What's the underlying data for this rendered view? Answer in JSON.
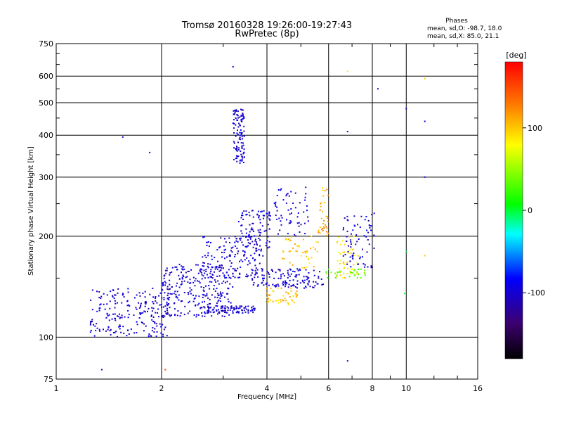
{
  "header": {
    "title_line1": "Tromsø 20160328 19:26:00-19:27:43",
    "title_line2": "RwPretec (8p)"
  },
  "stats": {
    "heading": "Phases",
    "line_o": "mean, sd,O: -98.7, 18.0",
    "line_x": "mean, sd,X:  85.0, 21.1"
  },
  "colorbar": {
    "unit": "[deg]",
    "ticks": [
      "100",
      "0",
      "-100"
    ],
    "tick_values": [
      100,
      0,
      -100
    ],
    "range": [
      -180,
      180
    ],
    "colors": [
      "#000000",
      "#3c0070",
      "#0000ff",
      "#00ffff",
      "#00ff00",
      "#ffff00",
      "#ff8000",
      "#ff0000"
    ]
  },
  "chart_data": {
    "type": "scatter",
    "title": "Tromsø 20160328 19:26:00-19:27:43",
    "subtitle": "RwPretec (8p)",
    "xlabel": "Frequency [MHz]",
    "ylabel": "Stationary phase Virtual Height [km]",
    "x_scale": "log",
    "y_scale": "log",
    "xlim": [
      1,
      16
    ],
    "ylim": [
      75,
      750
    ],
    "x_ticks": [
      1,
      2,
      4,
      6,
      8,
      10,
      16
    ],
    "x_tick_labels": [
      "1",
      "2",
      "4",
      "6",
      "8",
      "10",
      "16"
    ],
    "y_ticks": [
      75,
      100,
      200,
      300,
      400,
      500,
      600,
      750
    ],
    "y_tick_labels": [
      "75",
      "100",
      "200",
      "300",
      "400",
      "500",
      "600",
      "750"
    ],
    "grid": true,
    "color_by": "phase [deg]",
    "clusters": [
      {
        "x_range": [
          1.25,
          2.1
        ],
        "h_range": [
          100,
          140
        ],
        "phase": -100,
        "n": 220
      },
      {
        "x_range": [
          2.0,
          3.2
        ],
        "h_range": [
          115,
          165
        ],
        "phase": -100,
        "n": 260
      },
      {
        "x_range": [
          2.6,
          3.7
        ],
        "h_range": [
          118,
          124
        ],
        "phase": -100,
        "n": 90
      },
      {
        "x_range": [
          2.6,
          3.9
        ],
        "h_range": [
          150,
          200
        ],
        "phase": -100,
        "n": 160
      },
      {
        "x_range": [
          3.2,
          3.45
        ],
        "h_range": [
          330,
          480
        ],
        "phase": -100,
        "n": 110
      },
      {
        "x_range": [
          3.3,
          4.1
        ],
        "h_range": [
          180,
          240
        ],
        "phase": -100,
        "n": 90
      },
      {
        "x_range": [
          3.6,
          5.8
        ],
        "h_range": [
          140,
          160
        ],
        "phase": -100,
        "n": 130
      },
      {
        "x_range": [
          4.2,
          5.3
        ],
        "h_range": [
          200,
          280
        ],
        "phase": -100,
        "n": 60
      },
      {
        "x_range": [
          3.9,
          4.9
        ],
        "h_range": [
          125,
          140
        ],
        "phase": 100,
        "n": 50
      },
      {
        "x_range": [
          4.4,
          5.6
        ],
        "h_range": [
          160,
          200
        ],
        "phase": 100,
        "n": 45
      },
      {
        "x_range": [
          5.6,
          6.0
        ],
        "h_range": [
          200,
          280
        ],
        "phase": 110,
        "n": 35
      },
      {
        "x_range": [
          6.3,
          7.3
        ],
        "h_range": [
          150,
          200
        ],
        "phase": 90,
        "n": 55
      },
      {
        "x_range": [
          5.9,
          7.7
        ],
        "h_range": [
          150,
          160
        ],
        "phase": 30,
        "n": 30
      },
      {
        "x_range": [
          6.6,
          8.1
        ],
        "h_range": [
          160,
          240
        ],
        "phase": -100,
        "n": 70
      }
    ],
    "isolated_points": [
      {
        "x": 3.2,
        "h": 640,
        "phase": -100
      },
      {
        "x": 6.8,
        "h": 620,
        "phase": 90
      },
      {
        "x": 8.3,
        "h": 550,
        "phase": -100
      },
      {
        "x": 10.0,
        "h": 480,
        "phase": -100
      },
      {
        "x": 11.3,
        "h": 590,
        "phase": 100
      },
      {
        "x": 11.3,
        "h": 440,
        "phase": -100
      },
      {
        "x": 11.3,
        "h": 300,
        "phase": -100
      },
      {
        "x": 6.8,
        "h": 410,
        "phase": -100
      },
      {
        "x": 1.55,
        "h": 395,
        "phase": -100
      },
      {
        "x": 1.85,
        "h": 355,
        "phase": -100
      },
      {
        "x": 6.8,
        "h": 85,
        "phase": -100
      },
      {
        "x": 1.35,
        "h": 80,
        "phase": -100
      },
      {
        "x": 10.0,
        "h": 180,
        "phase": 0
      },
      {
        "x": 9.9,
        "h": 135,
        "phase": 0
      },
      {
        "x": 11.3,
        "h": 175,
        "phase": 100
      },
      {
        "x": 2.05,
        "h": 80,
        "phase": 150
      }
    ]
  }
}
